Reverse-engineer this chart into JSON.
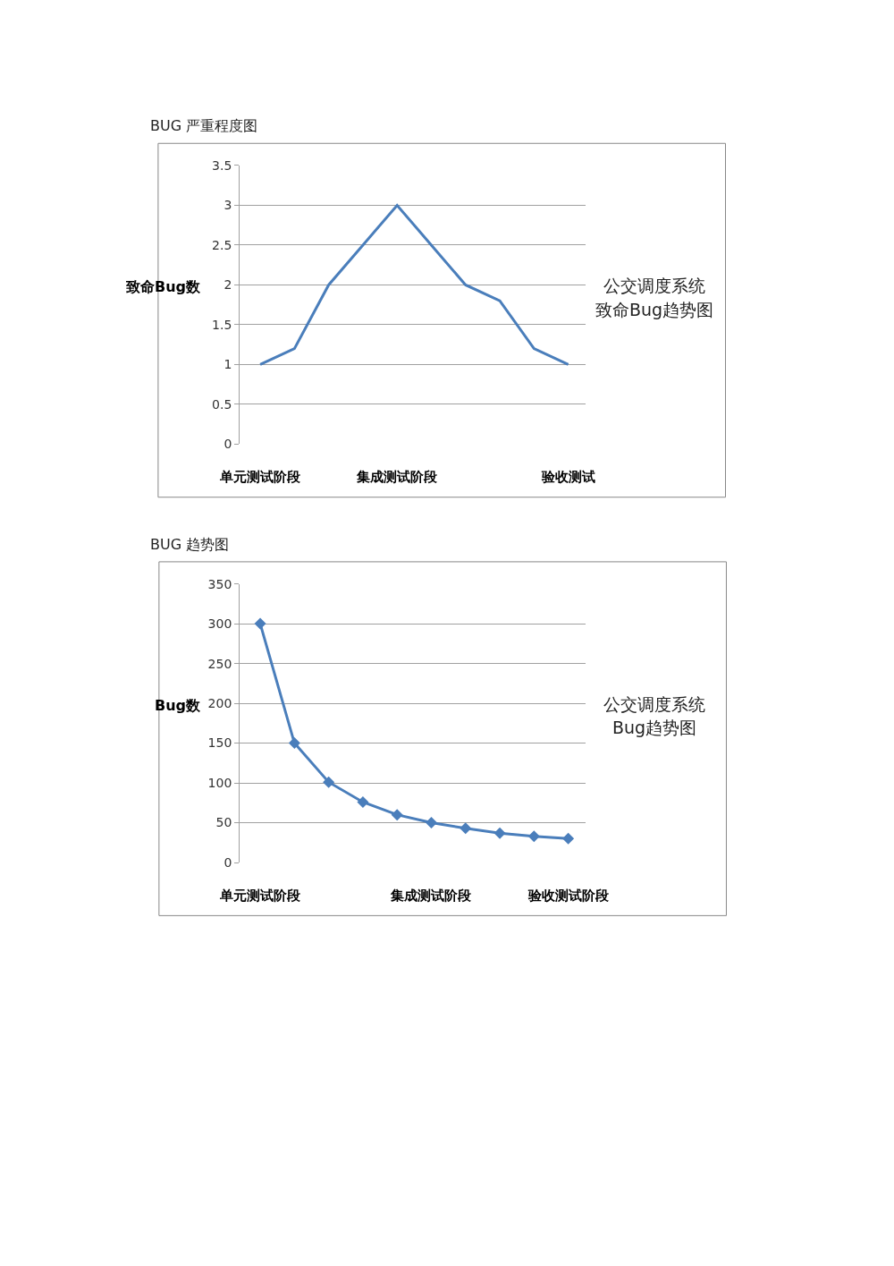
{
  "chart_data": [
    {
      "type": "line",
      "title": "BUG 严重程度图",
      "ylabel": "致命Bug数",
      "categories": [
        "单元测试阶段",
        null,
        null,
        null,
        "集成测试阶段",
        null,
        null,
        null,
        null,
        "验收测试"
      ],
      "series": [
        {
          "color": "#4a7ebb",
          "values": [
            1,
            1.2,
            2,
            2.5,
            3,
            2.5,
            2,
            1.8,
            1.2,
            1
          ]
        }
      ],
      "annotations": [
        "公交调度系统",
        "致命Bug趋势图"
      ],
      "ylim": [
        0,
        3.5
      ],
      "yticks": [
        0,
        0.5,
        1,
        1.5,
        2,
        2.5,
        3,
        3.5
      ],
      "grid": "y",
      "marker": "none",
      "line_style": "solid"
    },
    {
      "type": "line",
      "title": "BUG 趋势图",
      "ylabel": "Bug数",
      "categories": [
        "单元测试阶段",
        null,
        null,
        null,
        null,
        "集成测试阶段",
        null,
        null,
        null,
        "验收测试阶段"
      ],
      "series": [
        {
          "color": "#4a7ebb",
          "values": [
            300,
            150,
            101,
            76,
            60,
            50,
            43,
            37,
            33,
            30
          ]
        }
      ],
      "annotations": [
        "公交调度系统",
        "Bug趋势图"
      ],
      "ylim": [
        0,
        350
      ],
      "yticks": [
        0,
        50,
        100,
        150,
        200,
        250,
        300,
        350
      ],
      "grid": "y",
      "marker": "diamond",
      "line_style": "solid"
    }
  ]
}
